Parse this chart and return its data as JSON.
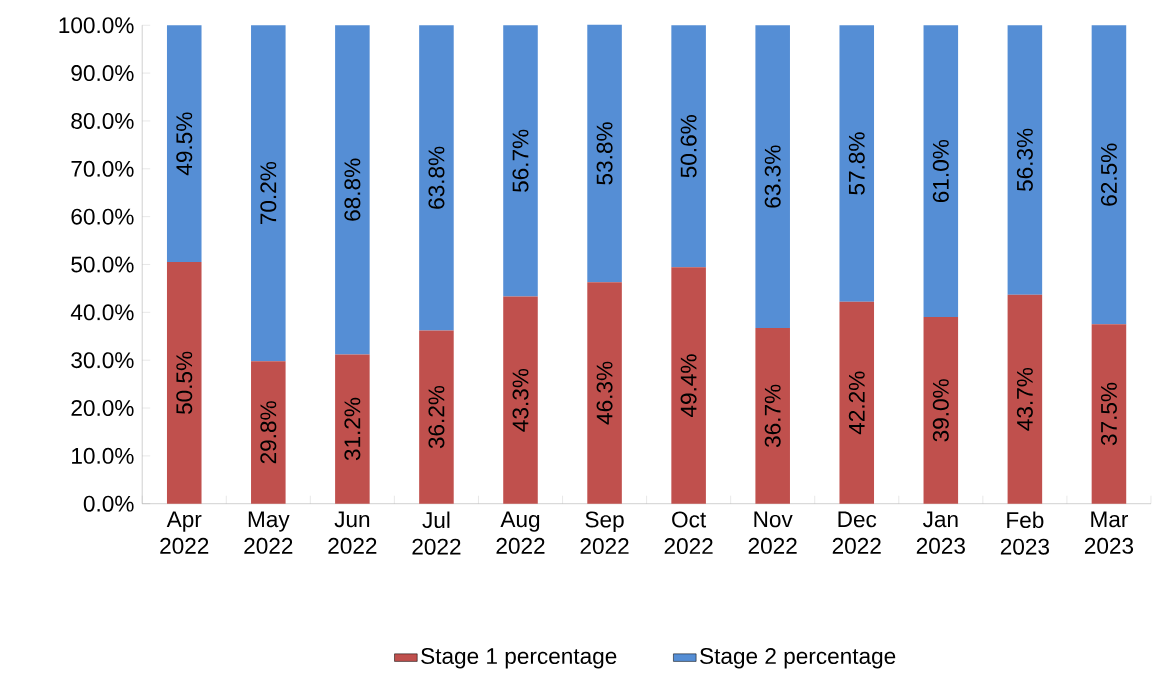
{
  "chart_data": {
    "type": "bar",
    "stacked": true,
    "categories": [
      "Apr 2022",
      "May 2022",
      "Jun 2022",
      "Jul 2022",
      "Aug 2022",
      "Sep 2022",
      "Oct 2022",
      "Nov 2022",
      "Dec 2022",
      "Jan 2023",
      "Feb 2023",
      "Mar 2023"
    ],
    "series": [
      {
        "name": "Stage 1 percentage",
        "color": "#c0504d",
        "values": [
          50.5,
          29.8,
          31.2,
          36.2,
          43.3,
          46.3,
          49.4,
          36.7,
          42.2,
          39.0,
          43.7,
          37.5
        ],
        "value_labels": [
          "50.5%",
          "29.8%",
          "31.2%",
          "36.2%",
          "43.3%",
          "46.3%",
          "49.4%",
          "36.7%",
          "42.2%",
          "39.0%",
          "43.7%",
          "37.5%"
        ]
      },
      {
        "name": "Stage 2 percentage",
        "color": "#558ed5",
        "values": [
          49.5,
          70.2,
          68.8,
          63.8,
          56.7,
          53.8,
          50.6,
          63.3,
          57.8,
          61.0,
          56.3,
          62.5
        ],
        "value_labels": [
          "49.5%",
          "70.2%",
          "68.8%",
          "63.8%",
          "56.7%",
          "53.8%",
          "50.6%",
          "63.3%",
          "57.8%",
          "61.0%",
          "56.3%",
          "62.5%"
        ]
      }
    ],
    "ylim": [
      0,
      100
    ],
    "yticks": [
      {
        "value": 0,
        "label": "0.0%"
      },
      {
        "value": 10,
        "label": "10.0%"
      },
      {
        "value": 20,
        "label": "20.0%"
      },
      {
        "value": 30,
        "label": "30.0%"
      },
      {
        "value": 40,
        "label": "40.0%"
      },
      {
        "value": 50,
        "label": "50.0%"
      },
      {
        "value": 60,
        "label": "60.0%"
      },
      {
        "value": 70,
        "label": "70.0%"
      },
      {
        "value": 80,
        "label": "80.0%"
      },
      {
        "value": 90,
        "label": "90.0%"
      },
      {
        "value": 100,
        "label": "100.0%"
      }
    ],
    "grid": false,
    "legend": "bottom"
  }
}
